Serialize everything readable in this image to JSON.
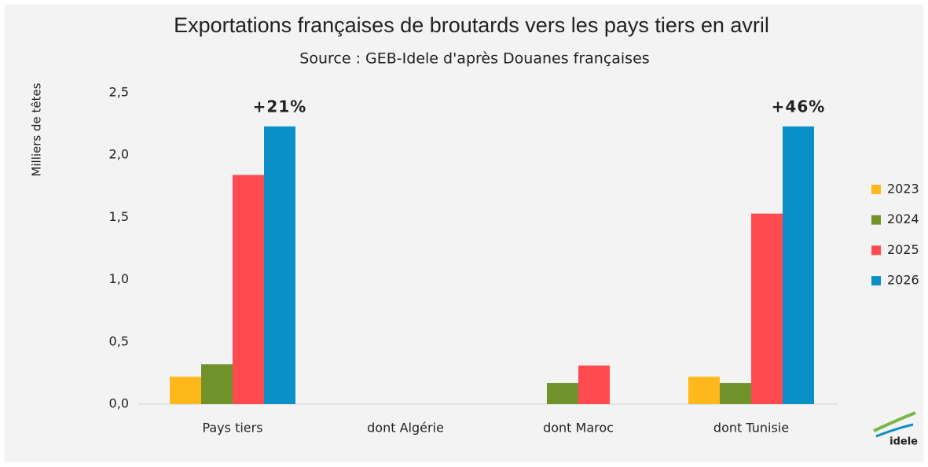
{
  "chart_data": {
    "type": "bar",
    "title": "Exportations françaises de broutards vers les pays tiers en avril",
    "subtitle": "Source : GEB-Idele d'après Douanes françaises",
    "y_label": "Milliers de têtes",
    "categories": [
      "Pays tiers",
      "dont Algérie",
      "dont Maroc",
      "dont Tunisie"
    ],
    "series": [
      {
        "name": "2023",
        "color": "#ffb81c",
        "values": [
          0.22,
          null,
          null,
          0.22
        ]
      },
      {
        "name": "2024",
        "color": "#6f922b",
        "values": [
          0.32,
          null,
          0.17,
          0.17
        ]
      },
      {
        "name": "2025",
        "color": "#ff4a4f",
        "values": [
          1.84,
          null,
          0.31,
          1.53
        ]
      },
      {
        "name": "2026",
        "color": "#0a8fc6",
        "values": [
          2.23,
          null,
          null,
          2.23
        ]
      }
    ],
    "annotations": [
      {
        "text": "+21%",
        "category": 0,
        "series": 3
      },
      {
        "text": "+46%",
        "category": 3,
        "series": 3
      }
    ],
    "ylim": [
      0,
      2.5
    ],
    "yticks": [
      {
        "value": 0,
        "label": "0,0"
      },
      {
        "value": 0.5,
        "label": "0,5"
      },
      {
        "value": 1,
        "label": "1,0"
      },
      {
        "value": 1.5,
        "label": "1,5"
      },
      {
        "value": 2,
        "label": "2,0"
      },
      {
        "value": 2.5,
        "label": "2,5"
      }
    ],
    "grid": false,
    "legend": "right",
    "logo": "idele"
  }
}
